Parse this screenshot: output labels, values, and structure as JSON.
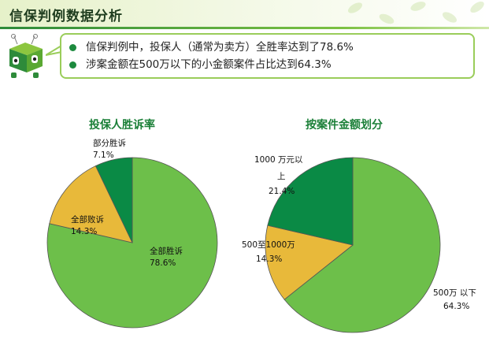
{
  "header": {
    "title": "信保判例数据分析"
  },
  "summary": {
    "bullets": [
      "信保判例中，投保人（通常为卖方）全胜率达到了78.6%",
      "涉案金额在500万以下的小金额案件占比达到64.3%"
    ]
  },
  "colors": {
    "dark_green": "#0a8a45",
    "light_green": "#6dbf4a",
    "yellow": "#e8b93a"
  },
  "chart_data": [
    {
      "type": "pie",
      "title": "投保人胜诉率",
      "slices": [
        {
          "label": "全部胜诉",
          "value": 78.6,
          "pct_label": "78.6%",
          "color": "#6dbf4a"
        },
        {
          "label": "全部败诉",
          "value": 14.3,
          "pct_label": "14.3%",
          "color": "#e8b93a"
        },
        {
          "label": "部分胜诉",
          "value": 7.1,
          "pct_label": "7.1%",
          "color": "#0a8a45"
        }
      ]
    },
    {
      "type": "pie",
      "title": "按案件金额划分",
      "slices": [
        {
          "label": "500万 以下",
          "value": 64.3,
          "pct_label": "64.3%",
          "color": "#6dbf4a"
        },
        {
          "label": "500至1000万",
          "value": 14.3,
          "pct_label": "14.3%",
          "color": "#e8b93a"
        },
        {
          "label": "1000 万元以上",
          "value": 21.4,
          "pct_label": "21.4%",
          "color": "#0a8a45"
        }
      ]
    }
  ]
}
